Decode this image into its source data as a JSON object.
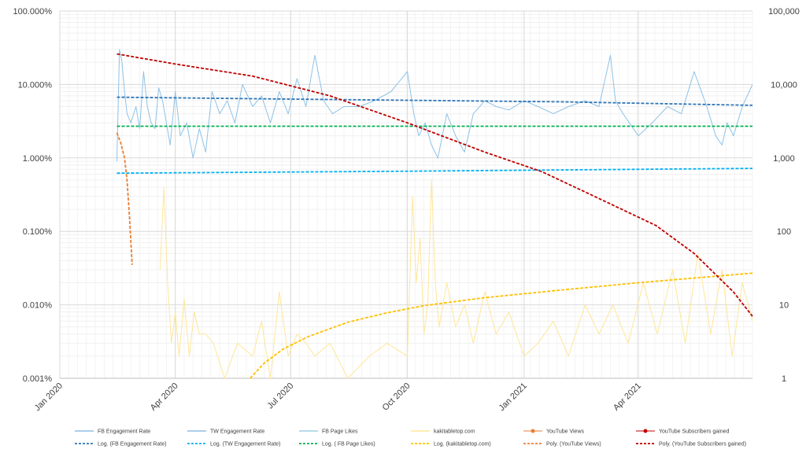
{
  "chart_data": {
    "type": "line",
    "title": "",
    "xlabel": "",
    "ylabel": "",
    "y_left_scale": "log",
    "y_right_scale": "log",
    "y_left_range": [
      "0.001%",
      "100.000%"
    ],
    "y_right_range": [
      1,
      100000
    ],
    "x_range": [
      "2020-01-01",
      "2021-06-30"
    ],
    "grid": true,
    "legend_position": "bottom",
    "x_ticks": [
      "Jan 2020",
      "Apr 2020",
      "Jul 2020",
      "Oct 2020",
      "Jan 2021",
      "Apr 2021"
    ],
    "y_left_ticks": [
      "100.000%",
      "10.000%",
      "1.000%",
      "0.100%",
      "0.010%",
      "0.001%"
    ],
    "y_right_ticks": [
      "100,000",
      "10,000",
      "1,000",
      "100",
      "10",
      "1"
    ],
    "legend": [
      {
        "label": "FB Engagement Rate",
        "color": "#5b9bd5",
        "style": "solid"
      },
      {
        "label": "TW Engagement Rate",
        "color": "#5b9bd5",
        "style": "solid"
      },
      {
        "label": "FB Page Likes",
        "color": "#70b7d4",
        "style": "solid"
      },
      {
        "label": "kakitabletop.com",
        "color": "#ffd966",
        "style": "solid"
      },
      {
        "label": "YouTube Views",
        "color": "#ed7d31",
        "style": "marker"
      },
      {
        "label": "YouTube Subscribers gained",
        "color": "#c00000",
        "style": "marker"
      },
      {
        "label": "Log. (FB Engagement Rate)",
        "color": "#2e75b6",
        "style": "dashed"
      },
      {
        "label": "Log. (TW Engagement Rate)",
        "color": "#00b0f0",
        "style": "dashed"
      },
      {
        "label": "Log. ( FB Page Likes)",
        "color": "#00b050",
        "style": "dashed"
      },
      {
        "label": "Log. (kakitabletop.com)",
        "color": "#ffc000",
        "style": "dashed"
      },
      {
        "label": "Poly. (YouTube Views)",
        "color": "#ed7d31",
        "style": "dashed"
      },
      {
        "label": "Poly. (YouTube Subscribers gained)",
        "color": "#c00000",
        "style": "dashed"
      }
    ],
    "series": [
      {
        "name": "FB Engagement Rate",
        "axis": "left",
        "color": "#8ec2e6",
        "style": "solid",
        "x": [
          "2020-02-15",
          "2020-02-17",
          "2020-02-19",
          "2020-02-21",
          "2020-02-23",
          "2020-02-26",
          "2020-03-01",
          "2020-03-04",
          "2020-03-07",
          "2020-03-10",
          "2020-03-13",
          "2020-03-16",
          "2020-03-19",
          "2020-03-22",
          "2020-03-25",
          "2020-03-28",
          "2020-04-01",
          "2020-04-05",
          "2020-04-10",
          "2020-04-15",
          "2020-04-20",
          "2020-04-25",
          "2020-04-30",
          "2020-05-06",
          "2020-05-12",
          "2020-05-18",
          "2020-05-24",
          "2020-06-01",
          "2020-06-08",
          "2020-06-15",
          "2020-06-22",
          "2020-06-29",
          "2020-07-06",
          "2020-07-13",
          "2020-07-20",
          "2020-07-27",
          "2020-08-03",
          "2020-08-12",
          "2020-08-24",
          "2020-09-05",
          "2020-09-18",
          "2020-10-01",
          "2020-10-06",
          "2020-10-10",
          "2020-10-15",
          "2020-10-20",
          "2020-10-25",
          "2020-11-01",
          "2020-11-08",
          "2020-11-15",
          "2020-11-22",
          "2020-12-01",
          "2020-12-10",
          "2020-12-20",
          "2021-01-01",
          "2021-01-12",
          "2021-01-24",
          "2021-02-05",
          "2021-02-18",
          "2021-03-01",
          "2021-03-10",
          "2021-03-14",
          "2021-03-20",
          "2021-04-01",
          "2021-04-12",
          "2021-04-24",
          "2021-05-05",
          "2021-05-15",
          "2021-05-25",
          "2021-06-01",
          "2021-06-06",
          "2021-06-10",
          "2021-06-15",
          "2021-06-22",
          "2021-06-30"
        ],
        "values": [
          0.9,
          30,
          20,
          8,
          4,
          3,
          5,
          2.5,
          15,
          5,
          3,
          2.5,
          9,
          6,
          3,
          1.5,
          8,
          2,
          3,
          1,
          2.5,
          1.2,
          8,
          4,
          6,
          3,
          10,
          5,
          7,
          3,
          8,
          4,
          12,
          5,
          25,
          6,
          4,
          5,
          5,
          6,
          8,
          15,
          4,
          2,
          3,
          1.5,
          1,
          4,
          2,
          1.2,
          4,
          6,
          5,
          4.5,
          6,
          5,
          4,
          5,
          6,
          5,
          25,
          6,
          4,
          2,
          3,
          5,
          4,
          15,
          5,
          2,
          1.5,
          3,
          2,
          5,
          10
        ]
      },
      {
        "name": "kakitabletop.com",
        "axis": "left",
        "color": "#ffe699",
        "style": "solid",
        "x": [
          "2020-03-20",
          "2020-03-23",
          "2020-03-26",
          "2020-03-29",
          "2020-04-01",
          "2020-04-04",
          "2020-04-08",
          "2020-04-12",
          "2020-04-16",
          "2020-04-20",
          "2020-04-25",
          "2020-05-01",
          "2020-05-10",
          "2020-05-20",
          "2020-06-01",
          "2020-06-08",
          "2020-06-15",
          "2020-06-22",
          "2020-06-29",
          "2020-07-06",
          "2020-07-13",
          "2020-07-20",
          "2020-08-01",
          "2020-08-15",
          "2020-09-01",
          "2020-09-15",
          "2020-10-01",
          "2020-10-05",
          "2020-10-08",
          "2020-10-11",
          "2020-10-14",
          "2020-10-17",
          "2020-10-20",
          "2020-10-23",
          "2020-10-26",
          "2020-11-01",
          "2020-11-08",
          "2020-11-15",
          "2020-11-22",
          "2020-12-01",
          "2020-12-10",
          "2020-12-20",
          "2021-01-01",
          "2021-01-12",
          "2021-01-24",
          "2021-02-05",
          "2021-02-18",
          "2021-03-01",
          "2021-03-12",
          "2021-03-24",
          "2021-04-05",
          "2021-04-16",
          "2021-04-28",
          "2021-05-08",
          "2021-05-18",
          "2021-05-28",
          "2021-06-06",
          "2021-06-14",
          "2021-06-22",
          "2021-06-30"
        ],
        "values": [
          0.03,
          0.4,
          0.02,
          0.003,
          0.008,
          0.002,
          0.012,
          0.002,
          0.008,
          0.004,
          0.004,
          0.003,
          0.001,
          0.003,
          0.002,
          0.006,
          0.001,
          0.015,
          0.002,
          0.004,
          0.003,
          0.002,
          0.003,
          0.001,
          0.002,
          0.003,
          0.002,
          0.3,
          0.02,
          0.08,
          0.004,
          0.01,
          0.5,
          0.02,
          0.005,
          0.02,
          0.005,
          0.01,
          0.003,
          0.015,
          0.004,
          0.008,
          0.002,
          0.003,
          0.006,
          0.002,
          0.01,
          0.004,
          0.01,
          0.003,
          0.02,
          0.004,
          0.03,
          0.003,
          0.05,
          0.004,
          0.03,
          0.002,
          0.02,
          0.006
        ]
      },
      {
        "name": "Log. (FB Engagement Rate)",
        "axis": "left",
        "color": "#2e75b6",
        "style": "dashed",
        "x": [
          "2020-02-15",
          "2020-06-01",
          "2020-10-01",
          "2021-02-01",
          "2021-06-30"
        ],
        "values": [
          6.7,
          6.4,
          6.1,
          5.8,
          5.2
        ]
      },
      {
        "name": "Log. (TW Engagement Rate)",
        "axis": "left",
        "color": "#00b0f0",
        "style": "dashed",
        "x": [
          "2020-02-15",
          "2020-10-01",
          "2021-06-30"
        ],
        "values": [
          0.62,
          0.66,
          0.72
        ]
      },
      {
        "name": "Log. ( FB Page Likes)",
        "axis": "left",
        "color": "#00b050",
        "style": "dashed",
        "x": [
          "2020-02-15",
          "2021-06-30"
        ],
        "values": [
          2.7,
          2.7
        ]
      },
      {
        "name": "Log. (kakitabletop.com)",
        "axis": "left",
        "color": "#ffc000",
        "style": "dashed",
        "x": [
          "2020-05-30",
          "2020-06-10",
          "2020-06-25",
          "2020-07-15",
          "2020-08-15",
          "2020-09-15",
          "2020-10-15",
          "2020-12-01",
          "2021-02-01",
          "2021-04-01",
          "2021-06-30"
        ],
        "values": [
          0.001,
          0.0016,
          0.0025,
          0.0037,
          0.0058,
          0.0078,
          0.0098,
          0.0125,
          0.016,
          0.02,
          0.027
        ]
      },
      {
        "name": "Poly. (YouTube Views)",
        "axis": "left",
        "color": "#ed7d31",
        "style": "dashed",
        "x": [
          "2020-02-15",
          "2020-02-18",
          "2020-02-21",
          "2020-02-23",
          "2020-02-25",
          "2020-02-27"
        ],
        "values": [
          2.2,
          1.6,
          1.0,
          0.5,
          0.15,
          0.035
        ]
      },
      {
        "name": "Poly. (YouTube Subscribers gained)",
        "axis": "right",
        "color": "#c00000",
        "style": "dashed",
        "x": [
          "2020-02-15",
          "2020-04-01",
          "2020-06-01",
          "2020-08-01",
          "2020-10-01",
          "2020-12-01",
          "2021-01-15",
          "2021-03-01",
          "2021-04-15",
          "2021-05-15",
          "2021-06-15",
          "2021-06-30"
        ],
        "values": [
          26000,
          19000,
          13000,
          7000,
          3000,
          1200,
          650,
          280,
          120,
          50,
          15,
          7
        ]
      }
    ]
  }
}
